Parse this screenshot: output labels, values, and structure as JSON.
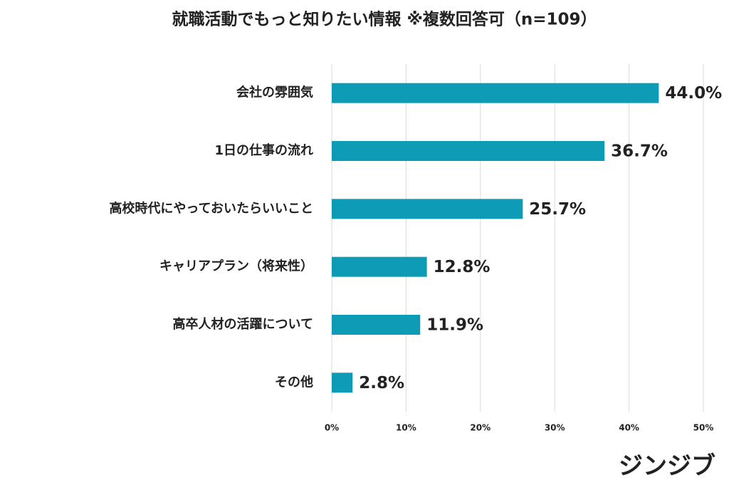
{
  "chart_data": {
    "type": "barh",
    "title": "就職活動でもっと知りたい情報 ※複数回答可（n=109）",
    "categories": [
      "会社の雰囲気",
      "1日の仕事の流れ",
      "高校時代にやっておいたらいいこと",
      "キャリアプラン（将来性）",
      "高卒人材の活躍について",
      "その他"
    ],
    "values": [
      44.0,
      36.7,
      25.7,
      12.8,
      11.9,
      2.8
    ],
    "value_labels": [
      "44.0%",
      "36.7%",
      "25.7%",
      "12.8%",
      "11.9%",
      "2.8%"
    ],
    "color": "#0e9bb6",
    "xlim": [
      0,
      50
    ],
    "xticks": [
      {
        "value": 0,
        "label": "0%"
      },
      {
        "value": 10,
        "label": "10%"
      },
      {
        "value": 20,
        "label": "20%"
      },
      {
        "value": 30,
        "label": "30%"
      },
      {
        "value": 40,
        "label": "40%"
      },
      {
        "value": 50,
        "label": "50%"
      }
    ],
    "grid": true
  },
  "brand": "ジンジブ"
}
